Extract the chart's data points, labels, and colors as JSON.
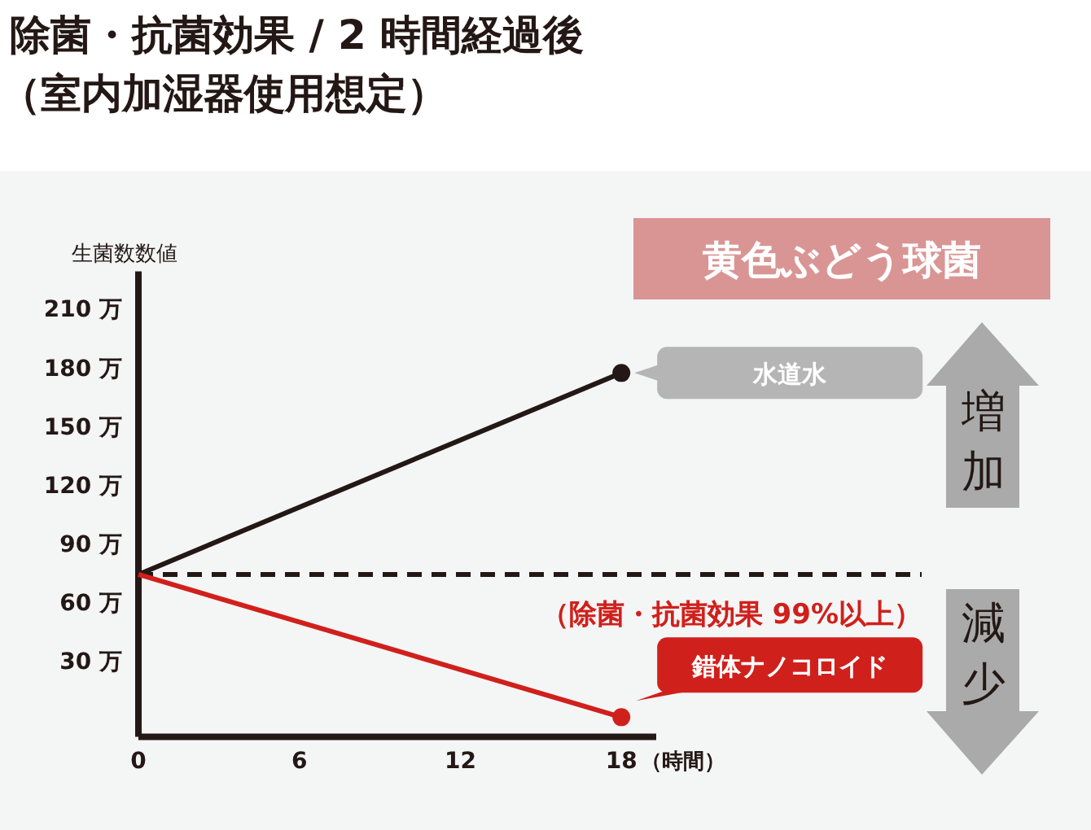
{
  "chart_data": {
    "type": "line",
    "title": "除菌・抗菌効果 / 2 時間経過後",
    "subtitle": "（室内加湿器使用想定）",
    "xlabel": "（時間）",
    "ylabel": "生菌数数値",
    "x": [
      0,
      18
    ],
    "series": [
      {
        "name": "水道水",
        "color": "#231815",
        "values": [
          75,
          178
        ]
      },
      {
        "name": "錯体ナノコロイド",
        "color": "#d0201c",
        "values": [
          75,
          2
        ]
      },
      {
        "type": "scatter",
        "color": "#231815",
        "x": [
          18
        ],
        "values": [
          178
        ]
      },
      {
        "type": "scatter",
        "color": "#d0201c",
        "x": [
          18
        ],
        "values": [
          2
        ]
      }
    ],
    "xlim": [
      0,
      19.3
    ],
    "xticks": [
      0,
      6,
      12,
      18
    ],
    "ylim": [
      -8,
      230
    ],
    "yticks": [
      {
        "value": 30,
        "label": "30 万"
      },
      {
        "value": 60,
        "label": "60 万"
      },
      {
        "value": 90,
        "label": "90 万"
      },
      {
        "value": 120,
        "label": "120 万"
      },
      {
        "value": 150,
        "label": "150 万"
      },
      {
        "value": 180,
        "label": "180 万"
      },
      {
        "value": 210,
        "label": "210 万"
      }
    ],
    "ref_lines": [
      {
        "axis": "y",
        "value": 75,
        "label": "（除菌・抗菌効果 99%以上）",
        "color": "#231815",
        "line_style": "dashed"
      }
    ],
    "annotations": [
      "黄色ぶどう球菌",
      "増加",
      "減少"
    ],
    "grid": false,
    "legend": false
  }
}
